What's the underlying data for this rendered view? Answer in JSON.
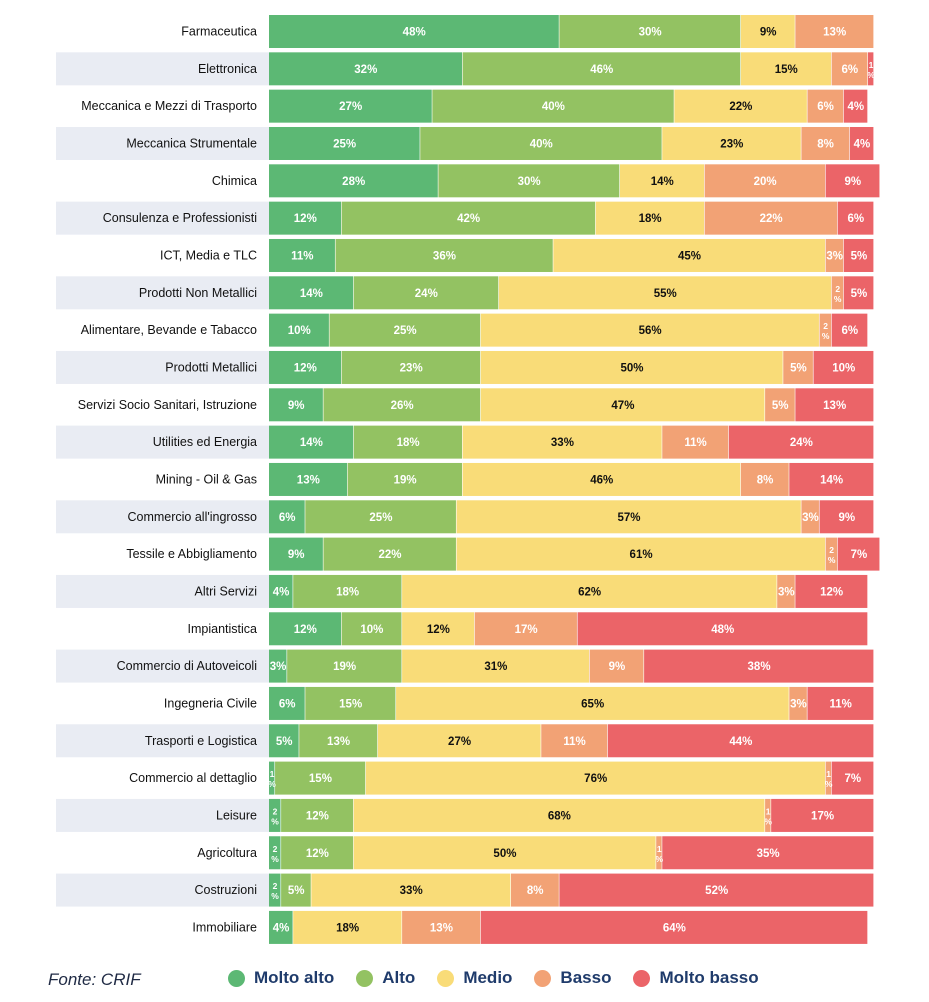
{
  "chart_data": {
    "type": "bar",
    "orientation": "horizontal",
    "stacked": true,
    "title": "",
    "xlabel": "",
    "ylabel": "",
    "xlim": [
      0,
      100
    ],
    "grid": false,
    "legend_position": "bottom",
    "categories": [
      "Farmaceutica",
      "Elettronica",
      "Meccanica e Mezzi di Trasporto",
      "Meccanica Strumentale",
      "Chimica",
      "Consulenza e Professionisti",
      "ICT, Media e TLC",
      "Prodotti Non Metallici",
      "Alimentare, Bevande e Tabacco",
      "Prodotti Metallici",
      "Servizi Socio Sanitari, Istruzione",
      "Utilities ed Energia",
      "Mining - Oil & Gas",
      "Commercio all'ingrosso",
      "Tessile e Abbigliamento",
      "Altri Servizi",
      "Impiantistica",
      "Commercio di Autoveicoli",
      "Ingegneria Civile",
      "Trasporti e Logistica",
      "Commercio al dettaglio",
      "Leisure",
      "Agricoltura",
      "Costruzioni",
      "Immobiliare"
    ],
    "series": [
      {
        "name": "Molto  alto",
        "color": "#5cb874",
        "values": [
          48,
          32,
          27,
          25,
          28,
          12,
          11,
          14,
          10,
          12,
          9,
          14,
          13,
          6,
          9,
          4,
          12,
          3,
          6,
          5,
          1,
          2,
          2,
          2,
          4
        ]
      },
      {
        "name": "Alto",
        "color": "#93c262",
        "values": [
          30,
          46,
          40,
          40,
          30,
          42,
          36,
          24,
          25,
          23,
          26,
          18,
          19,
          25,
          22,
          18,
          10,
          19,
          15,
          13,
          15,
          12,
          12,
          5,
          0
        ]
      },
      {
        "name": "Medio",
        "color": "#f9dc78",
        "values": [
          9,
          15,
          22,
          23,
          14,
          18,
          45,
          55,
          56,
          50,
          47,
          33,
          46,
          57,
          61,
          62,
          12,
          31,
          65,
          27,
          76,
          68,
          50,
          33,
          18
        ]
      },
      {
        "name": "Basso",
        "color": "#f2a275",
        "values": [
          13,
          6,
          6,
          8,
          20,
          22,
          3,
          2,
          2,
          5,
          5,
          11,
          8,
          3,
          2,
          3,
          17,
          9,
          3,
          11,
          1,
          1,
          1,
          8,
          13
        ]
      },
      {
        "name": "Molto basso",
        "color": "#eb6468",
        "values": [
          0,
          1,
          4,
          4,
          9,
          6,
          5,
          5,
          6,
          10,
          13,
          24,
          14,
          9,
          7,
          12,
          48,
          38,
          11,
          44,
          7,
          17,
          35,
          52,
          64
        ]
      }
    ]
  },
  "footer": {
    "source": "Fonte: CRIF"
  }
}
